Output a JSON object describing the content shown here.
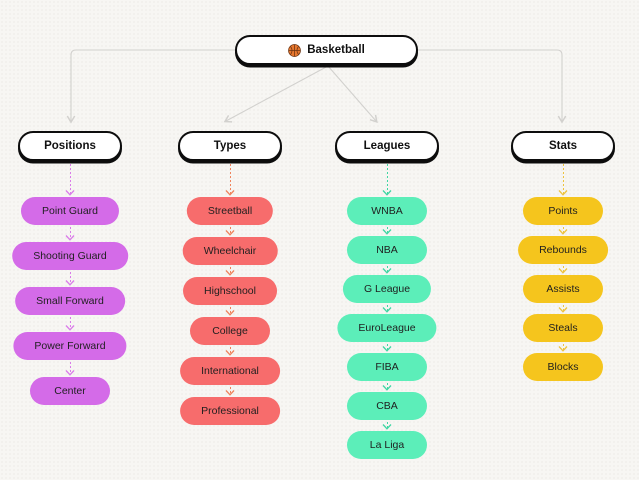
{
  "root": {
    "label": "Basketball",
    "icon": "basketball-icon"
  },
  "branches": [
    {
      "id": "positions",
      "label": "Positions",
      "pill_color": "#d46be8",
      "line_color": "#da7ce9",
      "children": [
        "Point Guard",
        "Shooting Guard",
        "Small Forward",
        "Power Forward",
        "Center"
      ]
    },
    {
      "id": "types",
      "label": "Types",
      "pill_color": "#f76c6c",
      "line_color": "#f0835c",
      "children": [
        "Streetball",
        "Wheelchair",
        "Highschool",
        "College",
        "International",
        "Professional"
      ]
    },
    {
      "id": "leagues",
      "label": "Leagues",
      "pill_color": "#5ceeb9",
      "line_color": "#3fd6a3",
      "children": [
        "WNBA",
        "NBA",
        "G League",
        "EuroLeague",
        "FIBA",
        "CBA",
        "La Liga"
      ]
    },
    {
      "id": "stats",
      "label": "Stats",
      "pill_color": "#f5c51d",
      "line_color": "#edc33e",
      "children": [
        "Points",
        "Rebounds",
        "Assists",
        "Steals",
        "Blocks"
      ]
    }
  ],
  "colors": {
    "background": "#f7f6f3",
    "dot": "#e6e4e0",
    "node_border": "#0d0d0d",
    "connector": "#d2d1ce",
    "text": "#1f1f1f"
  }
}
